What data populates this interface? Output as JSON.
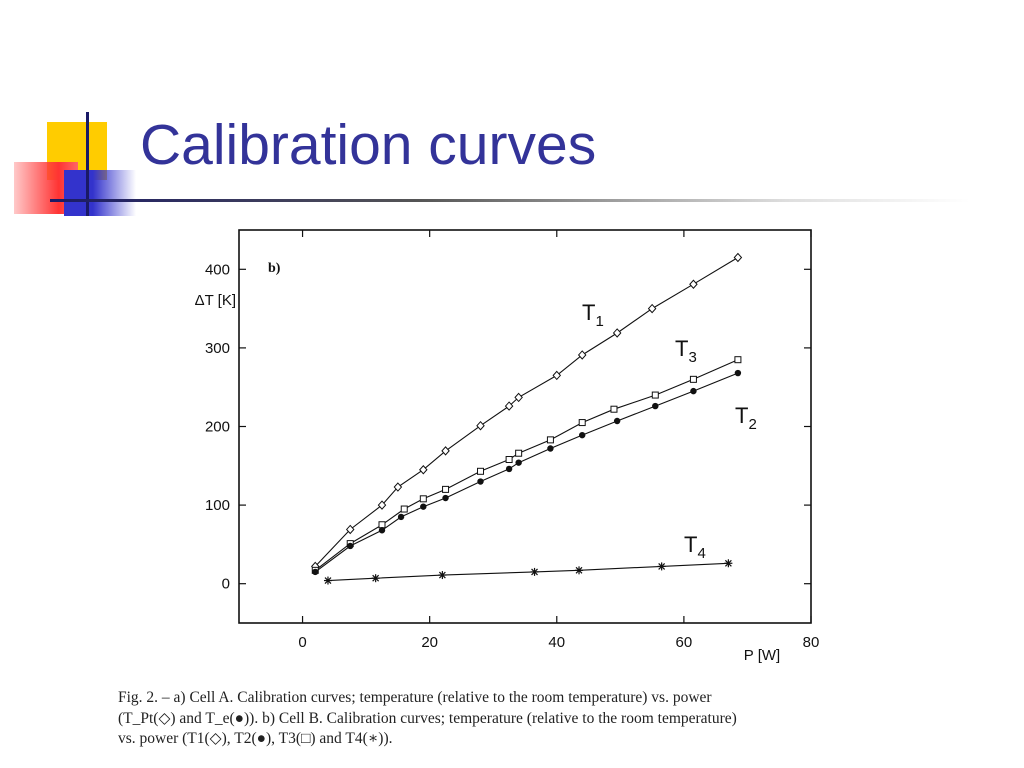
{
  "slide": {
    "title": "Calibration curves"
  },
  "caption": {
    "line1": "Fig. 2. – a) Cell A. Calibration curves; temperature (relative to the room temperature) vs. power",
    "line2": "(T_Pt(◇) and T_e(●)). b) Cell B. Calibration curves; temperature (relative to the room temperature)",
    "line3": "vs. power (T1(◇), T2(●), T3(□) and T4(∗))."
  },
  "colors": {
    "title": "#333399",
    "deco_yellow": "#ffcc00",
    "deco_blue": "#3333cc",
    "deco_red": "#ff3333"
  },
  "chart_data": {
    "type": "scatter",
    "panel_label": "b)",
    "ylabel": "ΔT [K]",
    "xlabel": "P [W]",
    "xlim": [
      -10,
      80
    ],
    "ylim": [
      -50,
      450
    ],
    "x_ticks": [
      0,
      20,
      40,
      60,
      80
    ],
    "y_ticks": [
      0,
      100,
      200,
      300,
      400
    ],
    "grid": false,
    "series": [
      {
        "name": "T1",
        "marker": "diamond",
        "points": [
          [
            2,
            22
          ],
          [
            7.5,
            69
          ],
          [
            12.5,
            100
          ],
          [
            15,
            123
          ],
          [
            19,
            145
          ],
          [
            22.5,
            169
          ],
          [
            28,
            201
          ],
          [
            32.5,
            226
          ],
          [
            34,
            237
          ],
          [
            40,
            265
          ],
          [
            44,
            291
          ],
          [
            49.5,
            319
          ],
          [
            55,
            350
          ],
          [
            61.5,
            381
          ],
          [
            68.5,
            415
          ]
        ]
      },
      {
        "name": "T3",
        "marker": "square",
        "points": [
          [
            2,
            17
          ],
          [
            7.5,
            51
          ],
          [
            12.5,
            75
          ],
          [
            16,
            95
          ],
          [
            19,
            108
          ],
          [
            22.5,
            120
          ],
          [
            28,
            143
          ],
          [
            32.5,
            158
          ],
          [
            34,
            166
          ],
          [
            39,
            183
          ],
          [
            44,
            205
          ],
          [
            49,
            222
          ],
          [
            55.5,
            240
          ],
          [
            61.5,
            260
          ],
          [
            68.5,
            285
          ]
        ]
      },
      {
        "name": "T2",
        "marker": "circle",
        "points": [
          [
            2,
            15
          ],
          [
            7.5,
            48
          ],
          [
            12.5,
            68
          ],
          [
            15.5,
            85
          ],
          [
            19,
            98
          ],
          [
            22.5,
            109
          ],
          [
            28,
            130
          ],
          [
            32.5,
            146
          ],
          [
            34,
            154
          ],
          [
            39,
            172
          ],
          [
            44,
            189
          ],
          [
            49.5,
            207
          ],
          [
            55.5,
            226
          ],
          [
            61.5,
            245
          ],
          [
            68.5,
            268
          ]
        ]
      },
      {
        "name": "T4",
        "marker": "asterisk",
        "points": [
          [
            4,
            4
          ],
          [
            11.5,
            7
          ],
          [
            22,
            11
          ],
          [
            36.5,
            15
          ],
          [
            43.5,
            17
          ],
          [
            56.5,
            22
          ],
          [
            67,
            26
          ]
        ]
      }
    ],
    "curve_labels": [
      {
        "base": "T",
        "sub": "1",
        "series": "T1"
      },
      {
        "base": "T",
        "sub": "3",
        "series": "T3"
      },
      {
        "base": "T",
        "sub": "2",
        "series": "T2"
      },
      {
        "base": "T",
        "sub": "4",
        "series": "T4"
      }
    ]
  }
}
